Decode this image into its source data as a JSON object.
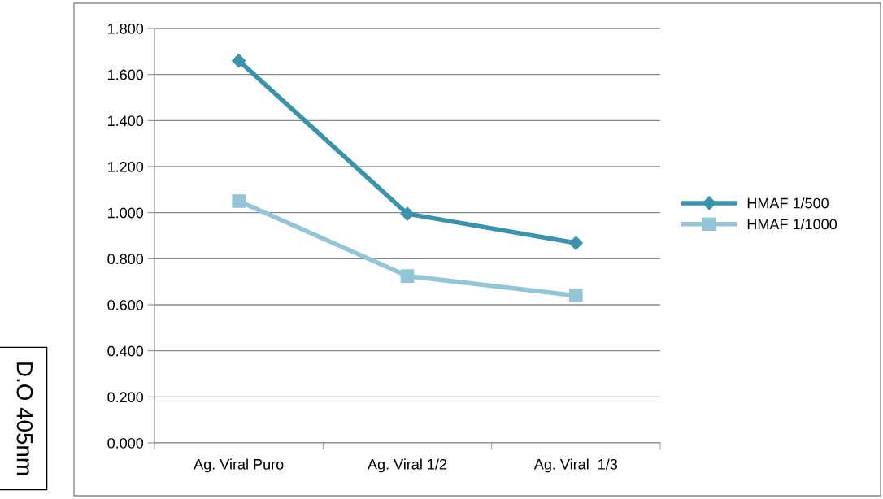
{
  "chart_data": {
    "type": "line",
    "ylabel": "D.O 405nm",
    "categories": [
      "Ag. Viral Puro",
      "Ag. Viral 1/2",
      "Ag. Viral  1/3"
    ],
    "series": [
      {
        "name": "HMAF 1/500",
        "color": "#3a93ad",
        "marker": "diamond",
        "values": [
          1.66,
          0.995,
          0.868
        ]
      },
      {
        "name": "HMAF 1/1000",
        "color": "#93c5d6",
        "marker": "square",
        "values": [
          1.05,
          0.725,
          0.64
        ]
      }
    ],
    "ylim": [
      0,
      1.8
    ],
    "yticks": [
      {
        "value": 0,
        "label": "0.000"
      },
      {
        "value": 0.2,
        "label": "0.200"
      },
      {
        "value": 0.4,
        "label": "0.400"
      },
      {
        "value": 0.6,
        "label": "0.600"
      },
      {
        "value": 0.8,
        "label": "0.800"
      },
      {
        "value": 1.0,
        "label": "1.000"
      },
      {
        "value": 1.2,
        "label": "1.200"
      },
      {
        "value": 1.4,
        "label": "1.400"
      },
      {
        "value": 1.6,
        "label": "1.600"
      },
      {
        "value": 1.8,
        "label": "1.800"
      }
    ],
    "grid": "y",
    "legend": "right",
    "line_style": "solid"
  }
}
